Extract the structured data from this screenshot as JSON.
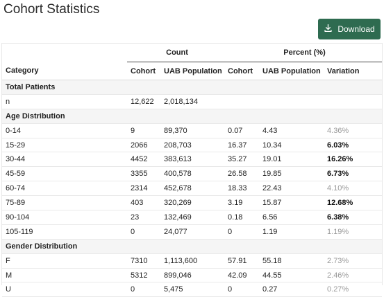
{
  "page": {
    "title": "Cohort Statistics"
  },
  "toolbar": {
    "download_label": "Download",
    "download_icon": "download-icon"
  },
  "table": {
    "group_headers": {
      "count": "Count",
      "percent": "Percent (%)"
    },
    "columns": [
      "Category",
      "Cohort",
      "UAB Population",
      "Cohort",
      "UAB Population",
      "Variation"
    ],
    "rows": [
      {
        "type": "section",
        "label": "Total Patients"
      },
      {
        "type": "data",
        "cells": [
          "n",
          "12,622",
          "2,018,134",
          "",
          "",
          ""
        ],
        "highlight": false
      },
      {
        "type": "section",
        "label": "Age Distribution"
      },
      {
        "type": "data",
        "cells": [
          "0-14",
          "9",
          "89,370",
          "0.07",
          "4.43",
          "4.36%"
        ],
        "highlight": false
      },
      {
        "type": "data",
        "cells": [
          "15-29",
          "2066",
          "208,703",
          "16.37",
          "10.34",
          "6.03%"
        ],
        "highlight": true
      },
      {
        "type": "data",
        "cells": [
          "30-44",
          "4452",
          "383,613",
          "35.27",
          "19.01",
          "16.26%"
        ],
        "highlight": true
      },
      {
        "type": "data",
        "cells": [
          "45-59",
          "3355",
          "400,578",
          "26.58",
          "19.85",
          "6.73%"
        ],
        "highlight": true
      },
      {
        "type": "data",
        "cells": [
          "60-74",
          "2314",
          "452,678",
          "18.33",
          "22.43",
          "4.10%"
        ],
        "highlight": false
      },
      {
        "type": "data",
        "cells": [
          "75-89",
          "403",
          "320,269",
          "3.19",
          "15.87",
          "12.68%"
        ],
        "highlight": true
      },
      {
        "type": "data",
        "cells": [
          "90-104",
          "23",
          "132,469",
          "0.18",
          "6.56",
          "6.38%"
        ],
        "highlight": true
      },
      {
        "type": "data",
        "cells": [
          "105-119",
          "0",
          "24,077",
          "0",
          "1.19",
          "1.19%"
        ],
        "highlight": false
      },
      {
        "type": "section",
        "label": "Gender Distribution"
      },
      {
        "type": "data",
        "cells": [
          "F",
          "7310",
          "1,113,600",
          "57.91",
          "55.18",
          "2.73%"
        ],
        "highlight": false
      },
      {
        "type": "data",
        "cells": [
          "M",
          "5312",
          "899,046",
          "42.09",
          "44.55",
          "2.46%"
        ],
        "highlight": false
      },
      {
        "type": "data",
        "cells": [
          "U",
          "0",
          "5,475",
          "0",
          "0.27",
          "0.27%"
        ],
        "highlight": false
      }
    ]
  },
  "colors": {
    "button_bg": "#2e6b50",
    "section_bg": "#f5f5f5",
    "muted_text": "#999999"
  }
}
